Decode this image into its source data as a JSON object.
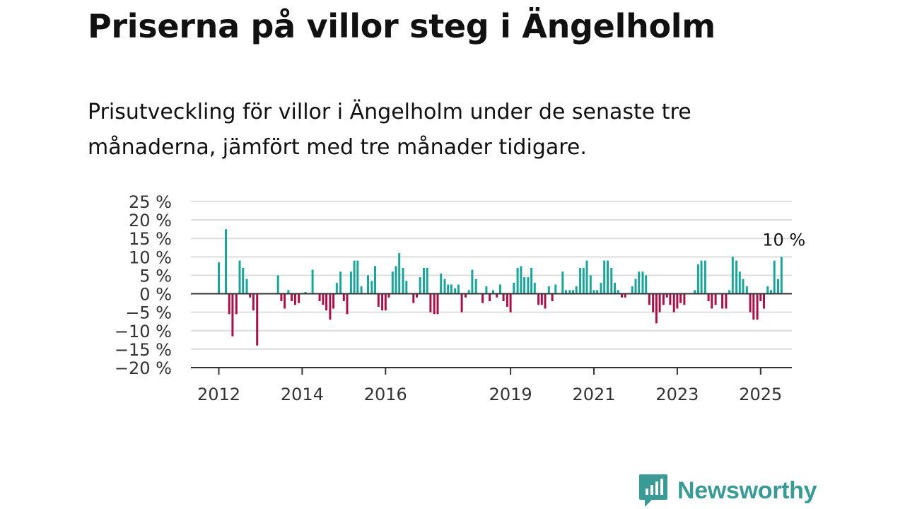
{
  "title": "Priserna på villor steg i Ängelholm",
  "subtitle": "Prisutveckling för villor i Ängelholm under de senaste tre månaderna, jämfört med tre månader tidigare.",
  "brand": {
    "name": "Newsworthy",
    "icon": "newsworthy-logo-icon",
    "color": "#3a9a95"
  },
  "chart_data": {
    "type": "bar",
    "ylim": [
      -20,
      25
    ],
    "yticks": [
      25,
      20,
      15,
      10,
      5,
      0,
      -5,
      -10,
      -15,
      -20
    ],
    "yunit": " %",
    "xticks": [
      2012,
      2014,
      2016,
      2019,
      2021,
      2023,
      2025
    ],
    "xlim": [
      2011.33,
      2025.75
    ],
    "grid": true,
    "positive_color": "#1aa59a",
    "negative_color": "#a8104a",
    "annotation": {
      "text": "10 %",
      "x": 2025.5
    },
    "bars": [
      {
        "x": 2012.0,
        "y": 8.5
      },
      {
        "x": 2012.17,
        "y": 17.5
      },
      {
        "x": 2012.25,
        "y": -5.5
      },
      {
        "x": 2012.33,
        "y": -11.5
      },
      {
        "x": 2012.42,
        "y": -5.5
      },
      {
        "x": 2012.5,
        "y": 9
      },
      {
        "x": 2012.58,
        "y": 7
      },
      {
        "x": 2012.67,
        "y": 4
      },
      {
        "x": 2012.75,
        "y": -1
      },
      {
        "x": 2012.83,
        "y": -4.5
      },
      {
        "x": 2012.92,
        "y": -14
      },
      {
        "x": 2013.42,
        "y": 5
      },
      {
        "x": 2013.5,
        "y": -2
      },
      {
        "x": 2013.58,
        "y": -4
      },
      {
        "x": 2013.67,
        "y": 1
      },
      {
        "x": 2013.75,
        "y": -2
      },
      {
        "x": 2013.83,
        "y": -3
      },
      {
        "x": 2013.92,
        "y": -2.5
      },
      {
        "x": 2014.08,
        "y": 0.5
      },
      {
        "x": 2014.25,
        "y": 6.5
      },
      {
        "x": 2014.42,
        "y": -2
      },
      {
        "x": 2014.5,
        "y": -3
      },
      {
        "x": 2014.58,
        "y": -4.5
      },
      {
        "x": 2014.67,
        "y": -7
      },
      {
        "x": 2014.75,
        "y": -4
      },
      {
        "x": 2014.83,
        "y": 3
      },
      {
        "x": 2014.92,
        "y": 6
      },
      {
        "x": 2015.0,
        "y": -2
      },
      {
        "x": 2015.08,
        "y": -5.5
      },
      {
        "x": 2015.17,
        "y": 6
      },
      {
        "x": 2015.25,
        "y": 9
      },
      {
        "x": 2015.33,
        "y": 9
      },
      {
        "x": 2015.42,
        "y": 2
      },
      {
        "x": 2015.58,
        "y": 5
      },
      {
        "x": 2015.67,
        "y": 3.5
      },
      {
        "x": 2015.75,
        "y": 7.5
      },
      {
        "x": 2015.83,
        "y": -3.5
      },
      {
        "x": 2015.92,
        "y": -4.5
      },
      {
        "x": 2016.0,
        "y": -4.5
      },
      {
        "x": 2016.08,
        "y": -1
      },
      {
        "x": 2016.17,
        "y": 6
      },
      {
        "x": 2016.25,
        "y": 7.5
      },
      {
        "x": 2016.33,
        "y": 11
      },
      {
        "x": 2016.42,
        "y": 7
      },
      {
        "x": 2016.5,
        "y": 3.5
      },
      {
        "x": 2016.67,
        "y": -2.5
      },
      {
        "x": 2016.75,
        "y": -1
      },
      {
        "x": 2016.83,
        "y": 4.5
      },
      {
        "x": 2016.92,
        "y": 7
      },
      {
        "x": 2017.0,
        "y": 7
      },
      {
        "x": 2017.08,
        "y": -5
      },
      {
        "x": 2017.17,
        "y": -5.5
      },
      {
        "x": 2017.25,
        "y": -5.5
      },
      {
        "x": 2017.33,
        "y": 5.5
      },
      {
        "x": 2017.42,
        "y": 4
      },
      {
        "x": 2017.5,
        "y": 2.5
      },
      {
        "x": 2017.58,
        "y": 2.5
      },
      {
        "x": 2017.67,
        "y": 1.5
      },
      {
        "x": 2017.75,
        "y": 2.5
      },
      {
        "x": 2017.83,
        "y": -5
      },
      {
        "x": 2017.92,
        "y": -1
      },
      {
        "x": 2018.0,
        "y": 1
      },
      {
        "x": 2018.08,
        "y": 6.5
      },
      {
        "x": 2018.17,
        "y": 4
      },
      {
        "x": 2018.33,
        "y": -2.5
      },
      {
        "x": 2018.42,
        "y": 2
      },
      {
        "x": 2018.5,
        "y": -2
      },
      {
        "x": 2018.58,
        "y": 1
      },
      {
        "x": 2018.67,
        "y": -1
      },
      {
        "x": 2018.75,
        "y": 2.5
      },
      {
        "x": 2018.83,
        "y": -2
      },
      {
        "x": 2018.92,
        "y": -3.5
      },
      {
        "x": 2019.0,
        "y": -5
      },
      {
        "x": 2019.08,
        "y": 3
      },
      {
        "x": 2019.17,
        "y": 7
      },
      {
        "x": 2019.25,
        "y": 7.5
      },
      {
        "x": 2019.33,
        "y": 4.5
      },
      {
        "x": 2019.42,
        "y": 4.5
      },
      {
        "x": 2019.5,
        "y": 7
      },
      {
        "x": 2019.58,
        "y": 3
      },
      {
        "x": 2019.67,
        "y": -3
      },
      {
        "x": 2019.75,
        "y": -3
      },
      {
        "x": 2019.83,
        "y": -4
      },
      {
        "x": 2019.92,
        "y": 2
      },
      {
        "x": 2020.0,
        "y": -2
      },
      {
        "x": 2020.08,
        "y": 2.5
      },
      {
        "x": 2020.25,
        "y": 6
      },
      {
        "x": 2020.33,
        "y": 1
      },
      {
        "x": 2020.42,
        "y": 1
      },
      {
        "x": 2020.5,
        "y": 1
      },
      {
        "x": 2020.58,
        "y": 2
      },
      {
        "x": 2020.67,
        "y": 7
      },
      {
        "x": 2020.75,
        "y": 7
      },
      {
        "x": 2020.83,
        "y": 9
      },
      {
        "x": 2020.92,
        "y": 5
      },
      {
        "x": 2021.0,
        "y": 1
      },
      {
        "x": 2021.08,
        "y": 1
      },
      {
        "x": 2021.17,
        "y": 3
      },
      {
        "x": 2021.25,
        "y": 9
      },
      {
        "x": 2021.33,
        "y": 9
      },
      {
        "x": 2021.42,
        "y": 7
      },
      {
        "x": 2021.5,
        "y": 3
      },
      {
        "x": 2021.58,
        "y": 1
      },
      {
        "x": 2021.67,
        "y": -1
      },
      {
        "x": 2021.75,
        "y": -1
      },
      {
        "x": 2021.92,
        "y": 2
      },
      {
        "x": 2022.0,
        "y": 4
      },
      {
        "x": 2022.08,
        "y": 6
      },
      {
        "x": 2022.17,
        "y": 6
      },
      {
        "x": 2022.25,
        "y": 5
      },
      {
        "x": 2022.33,
        "y": -3
      },
      {
        "x": 2022.42,
        "y": -5
      },
      {
        "x": 2022.5,
        "y": -8
      },
      {
        "x": 2022.58,
        "y": -5
      },
      {
        "x": 2022.67,
        "y": -3
      },
      {
        "x": 2022.75,
        "y": -1
      },
      {
        "x": 2022.83,
        "y": -3
      },
      {
        "x": 2022.92,
        "y": -5
      },
      {
        "x": 2023.0,
        "y": -4
      },
      {
        "x": 2023.08,
        "y": -2.5
      },
      {
        "x": 2023.17,
        "y": -3
      },
      {
        "x": 2023.42,
        "y": 1
      },
      {
        "x": 2023.5,
        "y": 8
      },
      {
        "x": 2023.58,
        "y": 9
      },
      {
        "x": 2023.67,
        "y": 9
      },
      {
        "x": 2023.75,
        "y": -2
      },
      {
        "x": 2023.83,
        "y": -4
      },
      {
        "x": 2023.92,
        "y": -3
      },
      {
        "x": 2024.08,
        "y": -4
      },
      {
        "x": 2024.17,
        "y": -4
      },
      {
        "x": 2024.25,
        "y": 1
      },
      {
        "x": 2024.33,
        "y": 10
      },
      {
        "x": 2024.42,
        "y": 9
      },
      {
        "x": 2024.5,
        "y": 6
      },
      {
        "x": 2024.58,
        "y": 4
      },
      {
        "x": 2024.67,
        "y": 2
      },
      {
        "x": 2024.75,
        "y": -5
      },
      {
        "x": 2024.83,
        "y": -7
      },
      {
        "x": 2024.92,
        "y": -7
      },
      {
        "x": 2025.0,
        "y": -2
      },
      {
        "x": 2025.08,
        "y": -4
      },
      {
        "x": 2025.17,
        "y": 2
      },
      {
        "x": 2025.25,
        "y": 1
      },
      {
        "x": 2025.33,
        "y": 9
      },
      {
        "x": 2025.42,
        "y": 4
      },
      {
        "x": 2025.5,
        "y": 10
      }
    ]
  }
}
